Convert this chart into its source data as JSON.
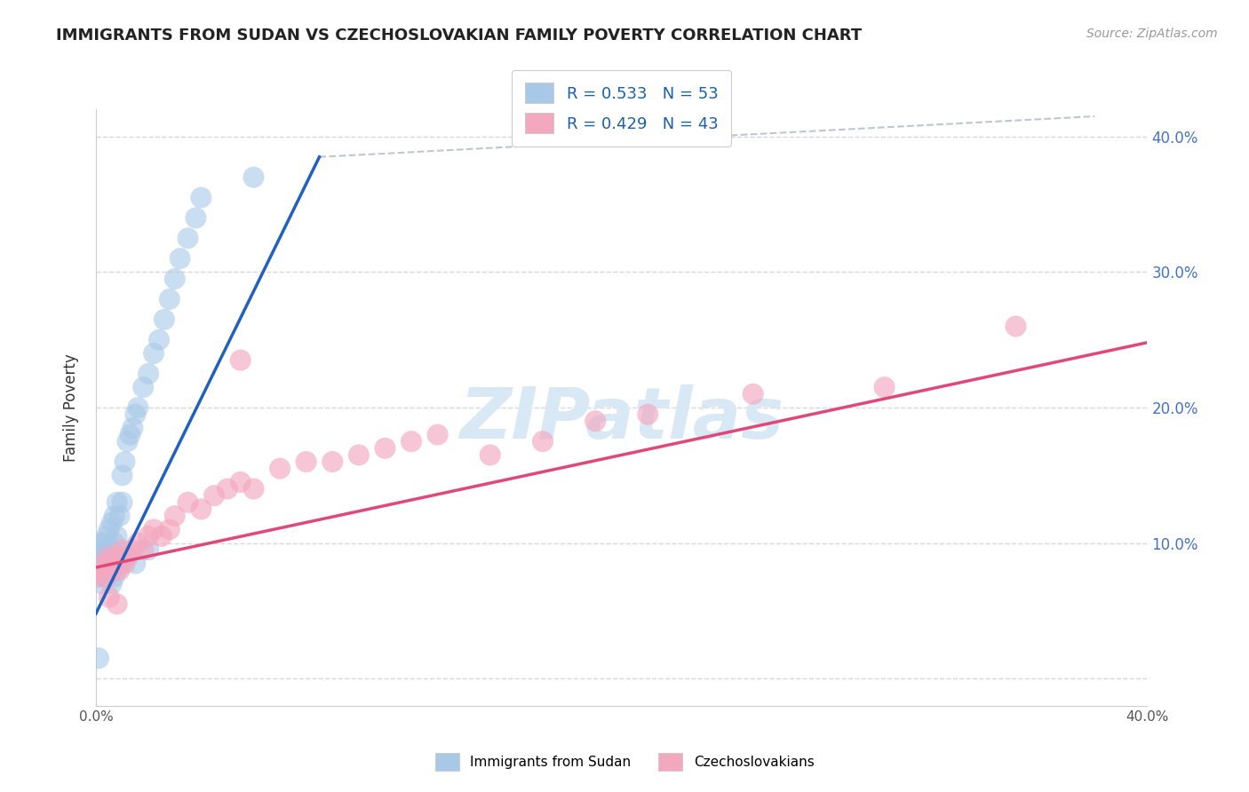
{
  "title": "IMMIGRANTS FROM SUDAN VS CZECHOSLOVAKIAN FAMILY POVERTY CORRELATION CHART",
  "source": "Source: ZipAtlas.com",
  "ylabel": "Family Poverty",
  "legend_label1": "Immigrants from Sudan",
  "legend_label2": "Czechoslovakians",
  "r1": 0.533,
  "n1": 53,
  "r2": 0.429,
  "n2": 43,
  "blue_color": "#a8c8e8",
  "pink_color": "#f4a8c0",
  "blue_line_color": "#2060c0",
  "pink_line_color": "#e04878",
  "watermark_color": "#d8e8f4",
  "xlim": [
    0.0,
    0.4
  ],
  "ylim": [
    -0.02,
    0.42
  ],
  "background_color": "#ffffff",
  "grid_color": "#d8d8d8",
  "blue_x": [
    0.001,
    0.001,
    0.002,
    0.002,
    0.002,
    0.003,
    0.003,
    0.003,
    0.004,
    0.004,
    0.004,
    0.005,
    0.005,
    0.005,
    0.006,
    0.006,
    0.007,
    0.007,
    0.008,
    0.008,
    0.009,
    0.01,
    0.01,
    0.011,
    0.012,
    0.013,
    0.014,
    0.015,
    0.016,
    0.018,
    0.02,
    0.022,
    0.024,
    0.026,
    0.028,
    0.03,
    0.032,
    0.035,
    0.038,
    0.04,
    0.002,
    0.003,
    0.004,
    0.005,
    0.006,
    0.007,
    0.008,
    0.01,
    0.012,
    0.015,
    0.02,
    0.001,
    0.06
  ],
  "blue_y": [
    0.08,
    0.09,
    0.085,
    0.095,
    0.1,
    0.075,
    0.09,
    0.1,
    0.085,
    0.095,
    0.105,
    0.08,
    0.09,
    0.11,
    0.095,
    0.115,
    0.1,
    0.12,
    0.105,
    0.13,
    0.12,
    0.13,
    0.15,
    0.16,
    0.175,
    0.18,
    0.185,
    0.195,
    0.2,
    0.215,
    0.225,
    0.24,
    0.25,
    0.265,
    0.28,
    0.295,
    0.31,
    0.325,
    0.34,
    0.355,
    0.07,
    0.08,
    0.075,
    0.085,
    0.07,
    0.075,
    0.08,
    0.085,
    0.09,
    0.085,
    0.095,
    0.015,
    0.37
  ],
  "pink_x": [
    0.001,
    0.002,
    0.003,
    0.004,
    0.005,
    0.006,
    0.007,
    0.008,
    0.009,
    0.01,
    0.011,
    0.012,
    0.014,
    0.016,
    0.018,
    0.02,
    0.022,
    0.025,
    0.028,
    0.03,
    0.035,
    0.04,
    0.045,
    0.05,
    0.055,
    0.06,
    0.07,
    0.08,
    0.09,
    0.1,
    0.11,
    0.12,
    0.13,
    0.15,
    0.17,
    0.19,
    0.21,
    0.25,
    0.3,
    0.35,
    0.005,
    0.008,
    0.055
  ],
  "pink_y": [
    0.075,
    0.08,
    0.085,
    0.075,
    0.09,
    0.08,
    0.085,
    0.09,
    0.08,
    0.095,
    0.085,
    0.09,
    0.095,
    0.1,
    0.095,
    0.105,
    0.11,
    0.105,
    0.11,
    0.12,
    0.13,
    0.125,
    0.135,
    0.14,
    0.145,
    0.14,
    0.155,
    0.16,
    0.16,
    0.165,
    0.17,
    0.175,
    0.18,
    0.165,
    0.175,
    0.19,
    0.195,
    0.21,
    0.215,
    0.26,
    0.06,
    0.055,
    0.235
  ],
  "blue_line_x": [
    0.0,
    0.085
  ],
  "blue_line_y": [
    0.048,
    0.385
  ],
  "pink_line_x": [
    0.0,
    0.4
  ],
  "pink_line_y": [
    0.082,
    0.248
  ],
  "dash_line_x": [
    0.085,
    0.38
  ],
  "dash_line_y": [
    0.385,
    0.415
  ]
}
